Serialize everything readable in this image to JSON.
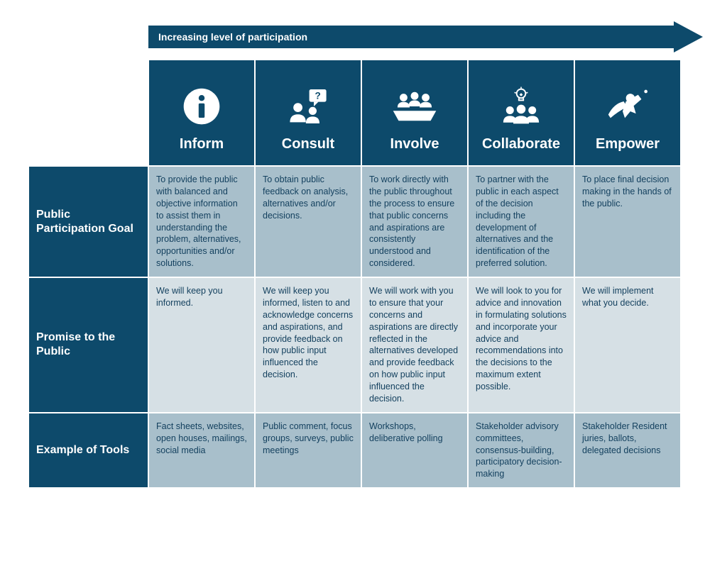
{
  "arrow": {
    "label": "Increasing level of participation",
    "color": "#0d4a6b"
  },
  "colors": {
    "header_bg": "#0d4a6b",
    "rowhead_bg": "#0d4a6b",
    "body_text": "#14415f",
    "row_shade_a": "#a8bfcb",
    "row_shade_b": "#d6e0e5",
    "icon_fill": "#ffffff"
  },
  "columns": [
    {
      "key": "inform",
      "label": "Inform",
      "icon": "info"
    },
    {
      "key": "consult",
      "label": "Consult",
      "icon": "question-people"
    },
    {
      "key": "involve",
      "label": "Involve",
      "icon": "meeting-table"
    },
    {
      "key": "collaborate",
      "label": "Collaborate",
      "icon": "idea-group"
    },
    {
      "key": "empower",
      "label": "Empower",
      "icon": "hero-fly"
    }
  ],
  "rows": [
    {
      "label": "Public Participation Goal",
      "shade": "a",
      "cells": {
        "inform": "To provide the public with balanced and objective information to assist them in understanding the problem, alternatives, opportunities and/or solutions.",
        "consult": "To obtain public feedback on analysis, alternatives and/or decisions.",
        "involve": "To work directly with the public throughout the process to ensure that public concerns and aspirations are consistently understood and considered.",
        "collaborate": "To partner with the public in each aspect of the decision including the development of alternatives and the identification of the preferred solution.",
        "empower": "To place final decision making in the hands of the public."
      }
    },
    {
      "label": "Promise to the Public",
      "shade": "b",
      "cells": {
        "inform": "We will keep you informed.",
        "consult": "We will keep you informed, listen to and acknowledge concerns and aspirations, and provide feedback on how public input influenced the decision.",
        "involve": "We will work with you to ensure that your concerns and aspirations are directly reflected in the alternatives developed and provide feedback on how public input influenced the decision.",
        "collaborate": "We will look to you for advice and innovation in formulating solutions and incorporate your advice and recommendations into the decisions to the maximum extent possible.",
        "empower": "We will implement what you decide."
      }
    },
    {
      "label": "Example of Tools",
      "shade": "a",
      "cells": {
        "inform": "Fact sheets, websites, open houses, mailings, social media",
        "consult": "Public comment, focus groups, surveys, public meetings",
        "involve": "Workshops, deliberative polling",
        "collaborate": "Stakeholder advisory committees, consensus-building, participatory decision-making",
        "empower": "Stakeholder Resident juries, ballots, delegated decisions"
      }
    }
  ]
}
